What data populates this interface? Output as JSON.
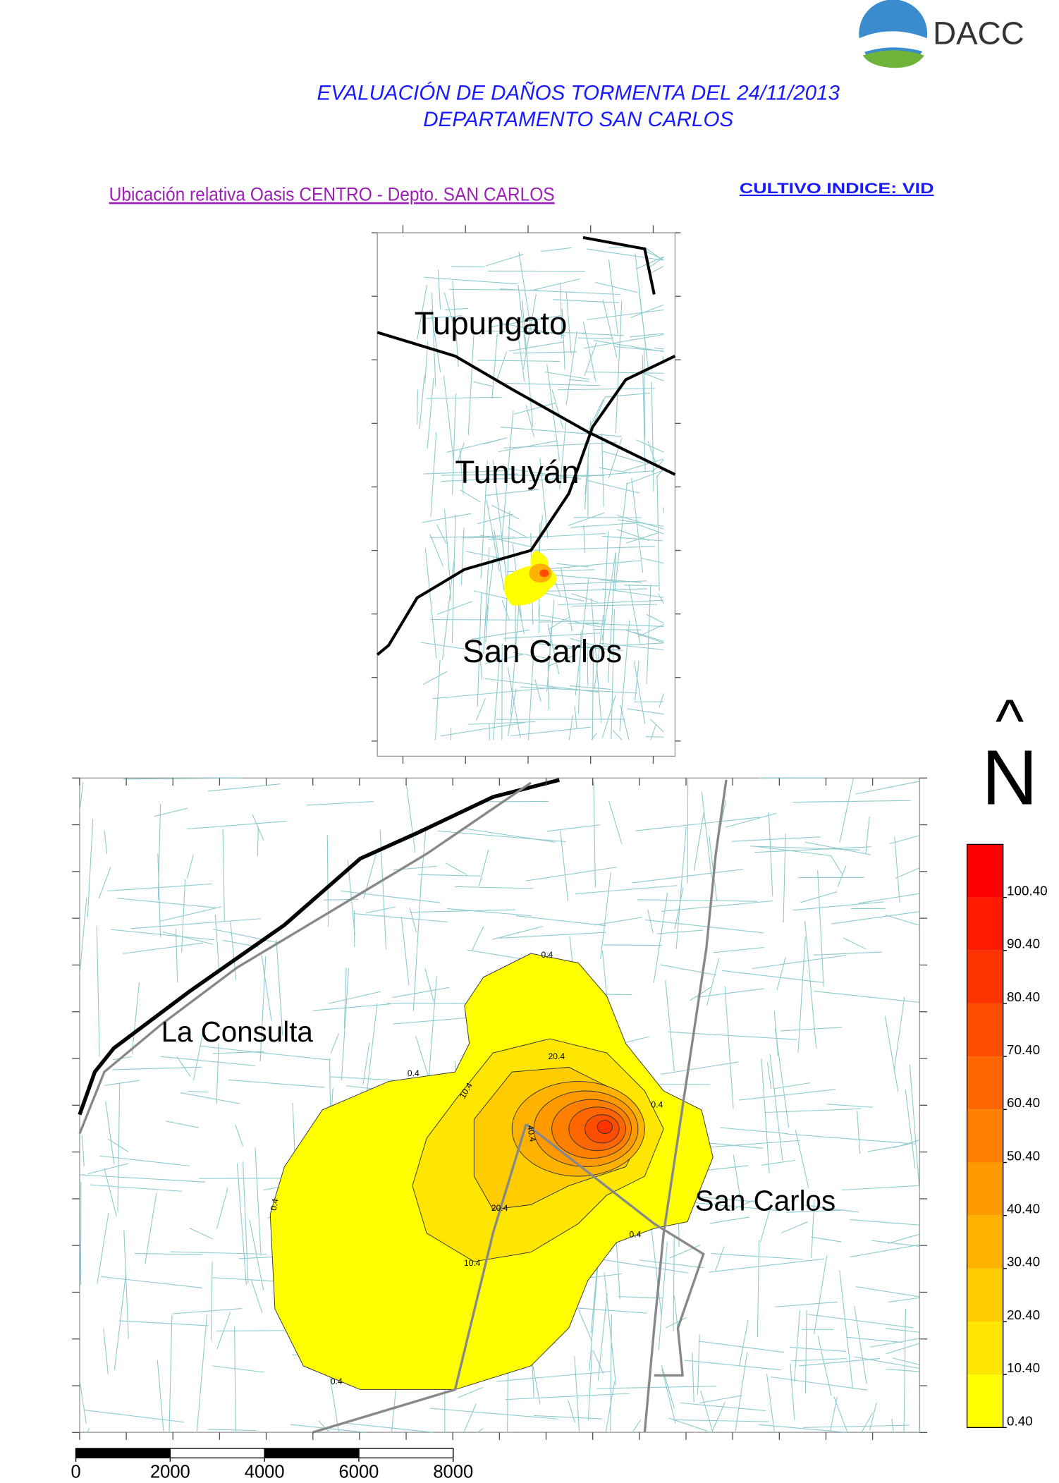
{
  "header": {
    "logo": "DACC",
    "title_line1": "EVALUACIÓN DE DAÑOS TORMENTA DEL 24/11/2013",
    "title_line2": "DEPARTAMENTO SAN CARLOS"
  },
  "subtitle": "Ubicación relativa Oasis CENTRO - Depto. SAN CARLOS",
  "crop": "CULTIVO INDICE: VID",
  "inset_map": {
    "labels": [
      "Tupungato",
      "Tunuyán",
      "San Carlos"
    ]
  },
  "main_map": {
    "labels": [
      "La Consulta",
      "San Carlos"
    ],
    "contour_labels": [
      "0.4",
      "0.4",
      "0.4",
      "0.4",
      "0.4",
      "0.4",
      "10.4",
      "10.4",
      "20.4",
      "20.4",
      "40.4"
    ]
  },
  "north": {
    "arrow": "^",
    "letter": "N"
  },
  "legend": {
    "lim": [
      0.4,
      110.4
    ],
    "ticks": [
      {
        "value": 0.4,
        "label": "0.40"
      },
      {
        "value": 10.4,
        "label": "10.40"
      },
      {
        "value": 20.4,
        "label": "20.40"
      },
      {
        "value": 30.4,
        "label": "30.40"
      },
      {
        "value": 40.4,
        "label": "40.40"
      },
      {
        "value": 50.4,
        "label": "50.40"
      },
      {
        "value": 60.4,
        "label": "60.40"
      },
      {
        "value": 70.4,
        "label": "70.40"
      },
      {
        "value": 80.4,
        "label": "80.40"
      },
      {
        "value": 90.4,
        "label": "90.40"
      },
      {
        "value": 100.4,
        "label": "100.40"
      }
    ],
    "colors": [
      "#ffff00",
      "#ffe600",
      "#ffcc00",
      "#ffb300",
      "#ff9900",
      "#ff8000",
      "#ff6600",
      "#ff4d00",
      "#ff3300",
      "#ff1a00",
      "#ff0000"
    ]
  },
  "scale_bar": {
    "ticks": [
      0,
      2000,
      4000,
      6000,
      8000
    ]
  }
}
